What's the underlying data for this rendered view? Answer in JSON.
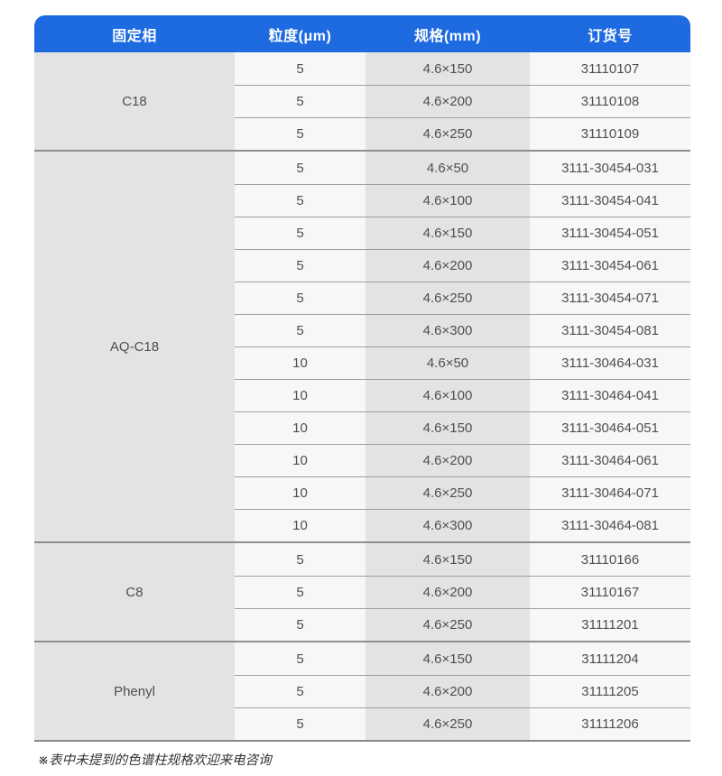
{
  "colors": {
    "header_bg": "#1e6be1",
    "header_text": "#ffffff",
    "shaded_cell": "#e3e3e3",
    "light_cell": "#f7f7f7",
    "thin_divider": "#9e9e9e",
    "thick_divider": "#8a8a8a",
    "cell_text": "#4f4f4f"
  },
  "table": {
    "headers": {
      "phase": "固定相",
      "particle_size": "粒度(μm)",
      "spec": "规格(mm)",
      "order_no": "订货号"
    },
    "groups": [
      {
        "phase": "C18",
        "rows": [
          [
            "5",
            "4.6×150",
            "31110107"
          ],
          [
            "5",
            "4.6×200",
            "31110108"
          ],
          [
            "5",
            "4.6×250",
            "31110109"
          ]
        ]
      },
      {
        "phase": "AQ-C18",
        "rows": [
          [
            "5",
            "4.6×50",
            "3111-30454-031"
          ],
          [
            "5",
            "4.6×100",
            "3111-30454-041"
          ],
          [
            "5",
            "4.6×150",
            "3111-30454-051"
          ],
          [
            "5",
            "4.6×200",
            "3111-30454-061"
          ],
          [
            "5",
            "4.6×250",
            "3111-30454-071"
          ],
          [
            "5",
            "4.6×300",
            "3111-30454-081"
          ],
          [
            "10",
            "4.6×50",
            "3111-30464-031"
          ],
          [
            "10",
            "4.6×100",
            "3111-30464-041"
          ],
          [
            "10",
            "4.6×150",
            "3111-30464-051"
          ],
          [
            "10",
            "4.6×200",
            "3111-30464-061"
          ],
          [
            "10",
            "4.6×250",
            "3111-30464-071"
          ],
          [
            "10",
            "4.6×300",
            "3111-30464-081"
          ]
        ]
      },
      {
        "phase": "C8",
        "rows": [
          [
            "5",
            "4.6×150",
            "31110166"
          ],
          [
            "5",
            "4.6×200",
            "31110167"
          ],
          [
            "5",
            "4.6×250",
            "31111201"
          ]
        ]
      },
      {
        "phase": "Phenyl",
        "rows": [
          [
            "5",
            "4.6×150",
            "31111204"
          ],
          [
            "5",
            "4.6×200",
            "31111205"
          ],
          [
            "5",
            "4.6×250",
            "31111206"
          ]
        ]
      }
    ]
  },
  "footnote": "※表中未提到的色谱柱规格欢迎来电咨询"
}
